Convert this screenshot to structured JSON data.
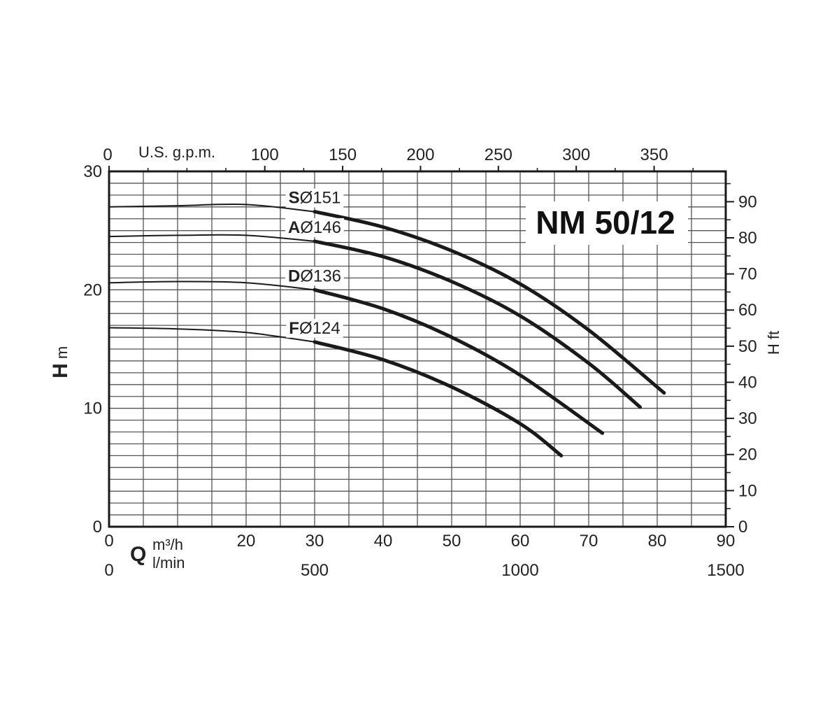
{
  "chart_data": {
    "type": "line",
    "title": "NM 50/12",
    "x_primary": {
      "unit": "m³/h",
      "symbol": "Q",
      "range": [
        0,
        90
      ],
      "ticks": [
        "0",
        "20",
        "30",
        "40",
        "50",
        "60",
        "70",
        "80",
        "90"
      ],
      "grid_step": 5
    },
    "x_lmin": {
      "unit": "l/min",
      "range": [
        0,
        1500
      ],
      "ticks": [
        "0",
        "500",
        "1000",
        "1500"
      ]
    },
    "x_gpm": {
      "unit": "U.S. g.p.m.",
      "range": [
        0,
        396
      ],
      "ticks": [
        "0",
        "100",
        "150",
        "200",
        "250",
        "300",
        "350"
      ]
    },
    "y_primary": {
      "symbol": "H",
      "unit": "m",
      "range": [
        0,
        30
      ],
      "ticks": [
        "0",
        "10",
        "20",
        "30"
      ],
      "grid_step": 1
    },
    "y_feet": {
      "label": "H ft",
      "range": [
        0,
        98.4
      ],
      "ticks": [
        "0",
        "10",
        "20",
        "30",
        "40",
        "50",
        "60",
        "70",
        "80",
        "90"
      ]
    },
    "grid": true,
    "series": [
      {
        "name": "S",
        "diameter_label": "Ø151",
        "x": [
          0,
          10,
          20,
          30,
          40,
          50,
          60,
          70,
          81
        ],
        "y": [
          27.0,
          27.1,
          27.2,
          26.6,
          25.3,
          23.3,
          20.5,
          16.6,
          11.3
        ],
        "bold_from_x": 30
      },
      {
        "name": "A",
        "diameter_label": "Ø146",
        "x": [
          0,
          10,
          20,
          30,
          40,
          50,
          60,
          70,
          77.5
        ],
        "y": [
          24.5,
          24.6,
          24.6,
          24.1,
          22.8,
          20.7,
          17.8,
          13.8,
          10.1
        ],
        "bold_from_x": 30
      },
      {
        "name": "D",
        "diameter_label": "Ø136",
        "x": [
          0,
          10,
          20,
          30,
          40,
          50,
          60,
          72
        ],
        "y": [
          20.6,
          20.7,
          20.6,
          20.0,
          18.4,
          16.0,
          12.8,
          7.9
        ],
        "bold_from_x": 30
      },
      {
        "name": "F",
        "diameter_label": "Ø124",
        "x": [
          0,
          10,
          20,
          30,
          40,
          50,
          60,
          66
        ],
        "y": [
          16.8,
          16.7,
          16.4,
          15.6,
          14.1,
          11.8,
          8.7,
          6.0
        ],
        "bold_from_x": 30
      }
    ],
    "colors": {
      "curve": "#1a1a1a",
      "grid": "#555555",
      "frame": "#1a1a1a"
    }
  }
}
